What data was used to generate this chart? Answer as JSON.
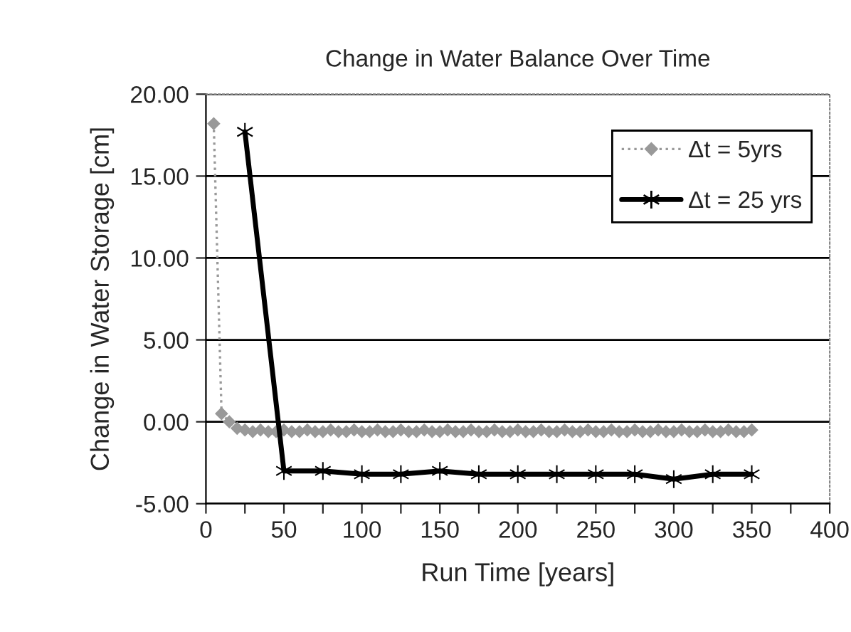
{
  "chart_data": {
    "type": "line",
    "title": "Change in Water Balance Over Time",
    "xlabel": "Run Time [years]",
    "ylabel": "Change in Water Storage [cm]",
    "xlim": [
      0,
      400
    ],
    "ylim": [
      -5,
      20
    ],
    "xticks": [
      0,
      {
        "value": 25,
        "label": null
      },
      50,
      {
        "value": 75,
        "label": null
      },
      100,
      {
        "value": 125,
        "label": null
      },
      150,
      {
        "value": 175,
        "label": null
      },
      200,
      {
        "value": 225,
        "label": null
      },
      250,
      {
        "value": 275,
        "label": null
      },
      300,
      {
        "value": 325,
        "label": null
      },
      350,
      {
        "value": 375,
        "label": null
      },
      400
    ],
    "yticks": [
      {
        "value": -5,
        "label": "-5.00"
      },
      {
        "value": 0,
        "label": "0.00"
      },
      {
        "value": 5,
        "label": "5.00"
      },
      {
        "value": 10,
        "label": "10.00"
      },
      {
        "value": 15,
        "label": "15.00"
      },
      {
        "value": 20,
        "label": "20.00"
      }
    ],
    "grid": "y",
    "legend": "top right",
    "series": [
      {
        "name": "Δt = 5yrs",
        "color": "#999999",
        "marker": "diamond",
        "line_style": "dotted",
        "x": [
          5,
          10,
          15,
          20,
          25,
          30,
          35,
          40,
          45,
          50,
          55,
          60,
          65,
          70,
          75,
          80,
          85,
          90,
          95,
          100,
          105,
          110,
          115,
          120,
          125,
          130,
          135,
          140,
          145,
          150,
          155,
          160,
          165,
          170,
          175,
          180,
          185,
          190,
          195,
          200,
          205,
          210,
          215,
          220,
          225,
          230,
          235,
          240,
          245,
          250,
          255,
          260,
          265,
          270,
          275,
          280,
          285,
          290,
          295,
          300,
          305,
          310,
          315,
          320,
          325,
          330,
          335,
          340,
          345,
          350
        ],
        "values": [
          18.2,
          0.5,
          0.0,
          -0.4,
          -0.5,
          -0.6,
          -0.5,
          -0.6,
          -0.6,
          -0.5,
          -0.6,
          -0.6,
          -0.5,
          -0.6,
          -0.6,
          -0.5,
          -0.6,
          -0.6,
          -0.5,
          -0.6,
          -0.6,
          -0.5,
          -0.6,
          -0.6,
          -0.5,
          -0.6,
          -0.6,
          -0.5,
          -0.6,
          -0.6,
          -0.5,
          -0.6,
          -0.6,
          -0.5,
          -0.6,
          -0.6,
          -0.5,
          -0.6,
          -0.6,
          -0.5,
          -0.6,
          -0.6,
          -0.5,
          -0.6,
          -0.6,
          -0.5,
          -0.6,
          -0.6,
          -0.5,
          -0.6,
          -0.6,
          -0.5,
          -0.6,
          -0.6,
          -0.5,
          -0.6,
          -0.6,
          -0.5,
          -0.6,
          -0.6,
          -0.5,
          -0.6,
          -0.6,
          -0.5,
          -0.6,
          -0.6,
          -0.5,
          -0.6,
          -0.6,
          -0.5
        ]
      },
      {
        "name": "Δt = 25 yrs",
        "color": "#000000",
        "marker": "cross",
        "line_style": "solid",
        "x": [
          25,
          50,
          75,
          100,
          125,
          150,
          175,
          200,
          225,
          250,
          275,
          300,
          325,
          350
        ],
        "values": [
          17.7,
          -3.0,
          -3.0,
          -3.2,
          -3.2,
          -3.0,
          -3.2,
          -3.2,
          -3.2,
          -3.2,
          -3.2,
          -3.5,
          -3.2,
          -3.2
        ]
      }
    ]
  }
}
